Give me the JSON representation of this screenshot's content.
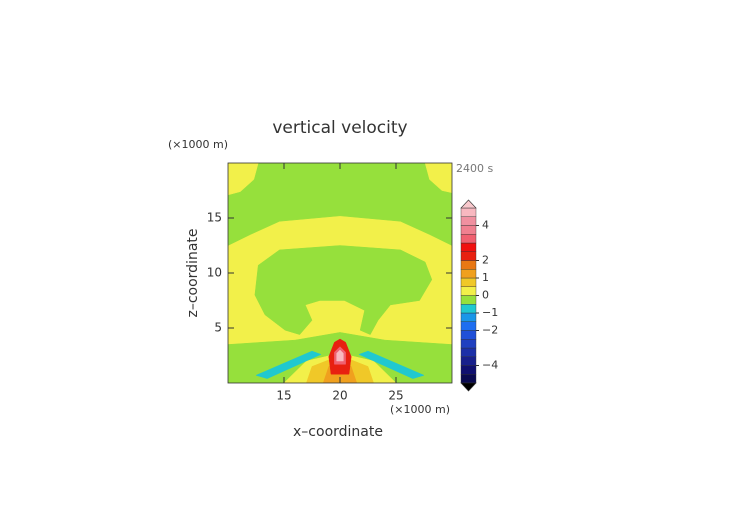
{
  "chart_data": {
    "type": "contour",
    "title": "vertical velocity",
    "x_label": "x–coordinate",
    "y_label": "z–coordinate",
    "x_unit": "(×1000 m)",
    "y_unit": "(×1000 m)",
    "time_label": "2400 s",
    "xlim": [
      10,
      30
    ],
    "ylim": [
      0,
      20
    ],
    "xticks": [
      15,
      20,
      25
    ],
    "yticks": [
      5,
      10,
      15
    ],
    "background_level": 0,
    "regions": [
      {
        "level": -0.5,
        "points": [
          [
            10,
            20
          ],
          [
            30,
            20
          ],
          [
            30,
            12.5
          ],
          [
            28,
            13.5
          ],
          [
            25.4,
            14.7
          ],
          [
            20,
            15.2
          ],
          [
            14.6,
            14.7
          ],
          [
            12,
            13.5
          ],
          [
            10,
            12.5
          ]
        ]
      },
      {
        "level": 0,
        "points": [
          [
            10,
            20
          ],
          [
            12.7,
            20
          ],
          [
            12.3,
            18.5
          ],
          [
            11.1,
            17.4
          ],
          [
            10,
            17.1
          ]
        ]
      },
      {
        "level": 0,
        "points": [
          [
            27.6,
            20
          ],
          [
            30,
            20
          ],
          [
            30,
            17.3
          ],
          [
            29.1,
            17.5
          ],
          [
            28,
            18.5
          ]
        ]
      },
      {
        "level": -0.5,
        "points": [
          [
            12.7,
            10.7
          ],
          [
            14.6,
            12.1
          ],
          [
            20,
            12.5
          ],
          [
            25.4,
            12.1
          ],
          [
            27.6,
            11
          ],
          [
            28.2,
            9.4
          ],
          [
            27.1,
            7.5
          ],
          [
            24.5,
            7.1
          ],
          [
            23.4,
            5.7
          ],
          [
            22.7,
            4.4
          ],
          [
            21.8,
            4.8
          ],
          [
            22.2,
            6.6
          ],
          [
            20.4,
            7.5
          ],
          [
            18.2,
            7.5
          ],
          [
            16.9,
            7.1
          ],
          [
            17.5,
            5.7
          ],
          [
            16.4,
            4.4
          ],
          [
            15.1,
            4.8
          ],
          [
            13.3,
            6.2
          ],
          [
            12.4,
            8
          ]
        ]
      },
      {
        "level": -0.5,
        "points": [
          [
            10,
            3.5
          ],
          [
            16,
            3.9
          ],
          [
            20,
            4.6
          ],
          [
            24,
            3.9
          ],
          [
            30,
            3.5
          ],
          [
            30,
            0
          ],
          [
            10,
            0
          ]
        ]
      },
      {
        "level": 0,
        "points": [
          [
            15,
            0
          ],
          [
            17,
            2
          ],
          [
            20,
            2.7
          ],
          [
            23,
            2
          ],
          [
            25,
            0
          ]
        ]
      },
      {
        "level": -1,
        "points": [
          [
            12.5,
            0.7
          ],
          [
            17.5,
            2.9
          ],
          [
            18.3,
            2.6
          ],
          [
            13.5,
            0.4
          ]
        ]
      },
      {
        "level": -1,
        "points": [
          [
            21.7,
            2.6
          ],
          [
            22.5,
            2.9
          ],
          [
            27.5,
            0.7
          ],
          [
            26.5,
            0.4
          ]
        ]
      },
      {
        "level": 0.5,
        "points": [
          [
            17,
            0
          ],
          [
            17.5,
            1.5
          ],
          [
            20,
            2.5
          ],
          [
            22.5,
            1.5
          ],
          [
            23,
            0
          ]
        ]
      },
      {
        "level": 1,
        "points": [
          [
            18.5,
            0
          ],
          [
            19,
            1.5
          ],
          [
            20,
            2
          ],
          [
            21,
            1.5
          ],
          [
            21.5,
            0
          ]
        ]
      },
      {
        "level": 2,
        "points": [
          [
            19.2,
            0.8
          ],
          [
            19,
            2.4
          ],
          [
            19.5,
            3.7
          ],
          [
            20,
            4
          ],
          [
            20.5,
            3.7
          ],
          [
            21,
            2.4
          ],
          [
            20.8,
            0.8
          ]
        ]
      },
      {
        "level": 3,
        "points": [
          [
            19.5,
            1.7
          ],
          [
            19.5,
            2.8
          ],
          [
            20,
            3.3
          ],
          [
            20.5,
            2.8
          ],
          [
            20.5,
            1.7
          ]
        ]
      },
      {
        "level": 4.5,
        "points": [
          [
            19.7,
            2
          ],
          [
            19.7,
            2.7
          ],
          [
            20,
            3
          ],
          [
            20.3,
            2.7
          ],
          [
            20.3,
            2
          ]
        ]
      }
    ],
    "colorbar": {
      "levels": [
        -5,
        -4.5,
        -4,
        -3.5,
        -3,
        -2.5,
        -2,
        -1.5,
        -1,
        -0.5,
        0,
        0.5,
        1,
        1.5,
        2,
        2.5,
        3,
        3.5,
        4,
        4.5,
        5
      ],
      "colors": [
        "#0a0a50",
        "#101070",
        "#18208c",
        "#1c30a8",
        "#2040c0",
        "#2050d8",
        "#1e6ef0",
        "#1a96e8",
        "#20c8d0",
        "#96e03c",
        "#f2f04a",
        "#f0c828",
        "#f0a01e",
        "#e87814",
        "#e82010",
        "#f01010",
        "#f06070",
        "#f08090",
        "#f090a0",
        "#f8b8c0"
      ],
      "extend_colors": [
        "#000000",
        "#f8c8cc"
      ],
      "ticks": [
        {
          "value": -4,
          "label": "−4"
        },
        {
          "value": -2,
          "label": "−2"
        },
        {
          "value": -1,
          "label": "−1"
        },
        0,
        1,
        2,
        4
      ]
    }
  }
}
